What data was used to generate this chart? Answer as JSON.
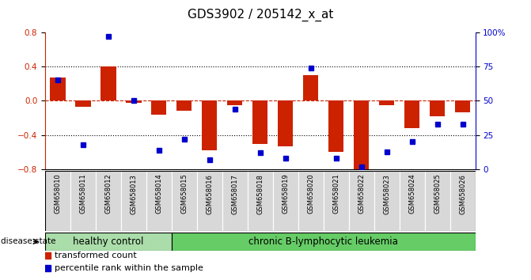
{
  "title": "GDS3902 / 205142_x_at",
  "categories": [
    "GSM658010",
    "GSM658011",
    "GSM658012",
    "GSM658013",
    "GSM658014",
    "GSM658015",
    "GSM658016",
    "GSM658017",
    "GSM658018",
    "GSM658019",
    "GSM658020",
    "GSM658021",
    "GSM658022",
    "GSM658023",
    "GSM658024",
    "GSM658025",
    "GSM658026"
  ],
  "red_bars": [
    0.27,
    -0.07,
    0.4,
    -0.02,
    -0.16,
    -0.12,
    -0.58,
    -0.05,
    -0.5,
    -0.53,
    0.3,
    -0.6,
    -0.82,
    -0.05,
    -0.32,
    -0.18,
    -0.13
  ],
  "blue_pct": [
    65,
    18,
    97,
    50,
    14,
    22,
    7,
    44,
    12,
    8,
    74,
    8,
    2,
    13,
    20,
    33,
    33
  ],
  "left_ylim": [
    -0.8,
    0.8
  ],
  "left_yticks": [
    -0.8,
    -0.4,
    0.0,
    0.4,
    0.8
  ],
  "right_yticks": [
    0,
    25,
    50,
    75,
    100
  ],
  "bar_color": "#cc2200",
  "square_color": "#0000cc",
  "healthy_count": 5,
  "healthy_label": "healthy control",
  "leukemia_label": "chronic B-lymphocytic leukemia",
  "disease_state_label": "disease state",
  "legend_bar_label": "transformed count",
  "legend_square_label": "percentile rank within the sample",
  "group_color_healthy": "#aaddaa",
  "group_color_leukemia": "#66cc66",
  "title_fontsize": 11,
  "tick_fontsize": 7.5,
  "label_fontsize": 8.5
}
